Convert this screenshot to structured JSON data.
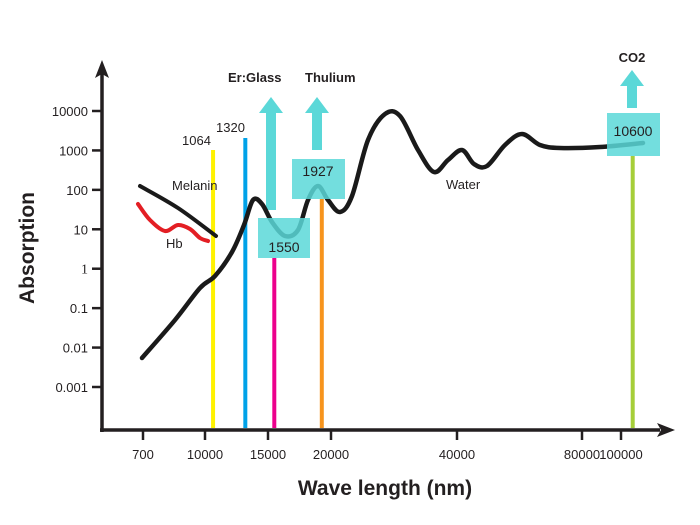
{
  "chart_data": {
    "type": "line",
    "title": "",
    "xlabel": "Wave length (nm)",
    "ylabel": "Absorption",
    "x_scale": "categorical-nonlinear",
    "y_scale": "log",
    "x_ticks": [
      "700",
      "10000",
      "15000",
      "20000",
      "40000",
      "80000",
      "100000"
    ],
    "y_ticks": [
      "10000",
      "1000",
      "100",
      "10",
      "1",
      "0.1",
      "0.01",
      "0.001"
    ],
    "ylim": [
      0.0001,
      100000
    ],
    "grid": false,
    "series": [
      {
        "name": "Water",
        "color": "#1a1a1a",
        "points": [
          {
            "x": 700,
            "y": 0.006
          },
          {
            "x": 9000,
            "y": 0.3
          },
          {
            "x": 10640,
            "y": 0.8
          },
          {
            "x": 13000,
            "y": 8
          },
          {
            "x": 13900,
            "y": 60
          },
          {
            "x": 14900,
            "y": 25
          },
          {
            "x": 15500,
            "y": 6
          },
          {
            "x": 16800,
            "y": 12
          },
          {
            "x": 18600,
            "y": 120
          },
          {
            "x": 19270,
            "y": 140
          },
          {
            "x": 20500,
            "y": 40
          },
          {
            "x": 21500,
            "y": 30
          },
          {
            "x": 27000,
            "y": 9000
          },
          {
            "x": 38000,
            "y": 300
          },
          {
            "x": 41000,
            "y": 1000
          },
          {
            "x": 44000,
            "y": 400
          },
          {
            "x": 60000,
            "y": 2500
          },
          {
            "x": 66000,
            "y": 1200
          },
          {
            "x": 106000,
            "y": 1500
          }
        ]
      },
      {
        "name": "Melanin",
        "color": "#1a1a1a",
        "points": [
          {
            "x": 700,
            "y": 120
          },
          {
            "x": 11000,
            "y": 6
          }
        ]
      },
      {
        "name": "Hb",
        "color": "#e31e24",
        "points": [
          {
            "x": 700,
            "y": 45
          },
          {
            "x": 7000,
            "y": 10
          },
          {
            "x": 9000,
            "y": 12
          },
          {
            "x": 10400,
            "y": 5
          }
        ]
      }
    ],
    "laser_lines": [
      {
        "label": "1064",
        "x": 10640,
        "peak": 1000,
        "color": "#fff200"
      },
      {
        "label": "1320",
        "x": 13200,
        "peak": 2000,
        "color": "#00a2e8"
      },
      {
        "label": "1550",
        "x": 15500,
        "peak": 5,
        "color": "#ec008c"
      },
      {
        "label": "1927",
        "x": 19270,
        "peak": 120,
        "color": "#f7941d"
      },
      {
        "label": "10600",
        "x": 106000,
        "peak": 1500,
        "color": "#a6ce39"
      }
    ],
    "annotations": [
      {
        "text": "Melanin"
      },
      {
        "text": "Hb"
      },
      {
        "text": "Water"
      },
      {
        "text": "Er:Glass"
      },
      {
        "text": "Thulium"
      },
      {
        "text": "CO2"
      }
    ],
    "highlight_color": "#5bd8d8"
  }
}
